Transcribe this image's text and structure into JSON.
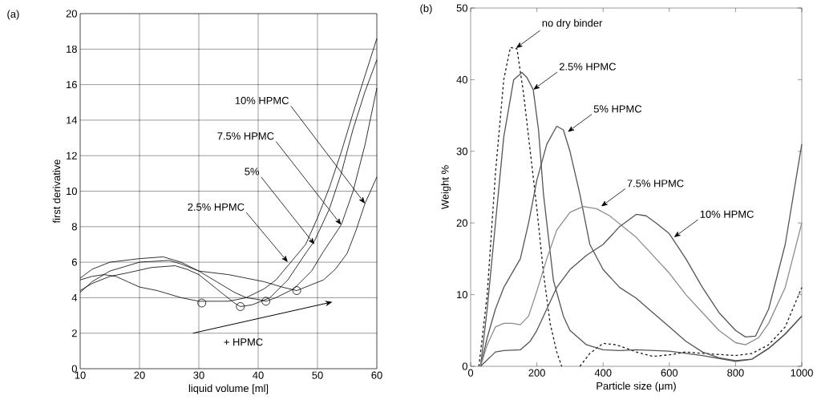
{
  "chart_data": [
    {
      "type": "line",
      "title": "(a)",
      "xlabel": "liquid volume [ml]",
      "ylabel": "first derivative",
      "xlim": [
        10,
        60
      ],
      "ylim": [
        0,
        20
      ],
      "xticks": [
        10,
        20,
        30,
        40,
        50,
        60
      ],
      "yticks": [
        0,
        2,
        4,
        6,
        8,
        10,
        12,
        14,
        16,
        18,
        20
      ],
      "grid": true,
      "series": [
        {
          "color": "#000000",
          "x": [
            10,
            12,
            14,
            16,
            18,
            20,
            23,
            27,
            30,
            33,
            35,
            38,
            41,
            43,
            45.5,
            48,
            50,
            52,
            54,
            56,
            58,
            60
          ],
          "values": [
            5.0,
            5.2,
            5.3,
            5.2,
            4.9,
            4.6,
            4.4,
            4.0,
            3.8,
            3.8,
            3.8,
            4.0,
            4.5,
            5.0,
            6.0,
            7.0,
            8.5,
            10.2,
            12.2,
            14.4,
            16.5,
            18.6
          ]
        },
        {
          "color": "#000000",
          "x": [
            10,
            12,
            15,
            18,
            22,
            26,
            28,
            30,
            33,
            36,
            37,
            39,
            42,
            45,
            48,
            49.5,
            52,
            54,
            56,
            58,
            60
          ],
          "values": [
            4.4,
            4.8,
            5.2,
            5.4,
            5.7,
            5.8,
            5.6,
            5.3,
            4.5,
            3.7,
            3.5,
            3.6,
            4.0,
            5.0,
            6.5,
            7.2,
            9.0,
            11.0,
            13.5,
            15.6,
            17.4
          ]
        },
        {
          "color": "#000000",
          "x": [
            10,
            12,
            15,
            20,
            24,
            27,
            30,
            33,
            36,
            38,
            40,
            41.3,
            43,
            46,
            49,
            51,
            54,
            56,
            58,
            60
          ],
          "values": [
            5.1,
            5.6,
            6.0,
            6.2,
            6.3,
            6.0,
            5.5,
            4.9,
            4.3,
            4.0,
            3.9,
            3.8,
            4.0,
            4.5,
            5.5,
            6.6,
            8.1,
            10.0,
            12.6,
            15.8
          ]
        },
        {
          "color": "#000000",
          "x": [
            10,
            12,
            15,
            20,
            25,
            27,
            30,
            35,
            38,
            41,
            44,
            46.5,
            48,
            51,
            53,
            55,
            56.5,
            58,
            60
          ],
          "values": [
            4.3,
            4.9,
            5.5,
            6.0,
            6.1,
            5.9,
            5.5,
            5.3,
            5.1,
            4.9,
            4.6,
            4.4,
            4.6,
            5.0,
            5.6,
            6.5,
            7.8,
            9.3,
            10.8
          ]
        },
        {
          "type": "scatter",
          "marker": "circle",
          "color": "#000000",
          "x": [
            30.5,
            37,
            41.3,
            46.5
          ],
          "values": [
            3.7,
            3.5,
            3.8,
            4.4
          ]
        }
      ],
      "annotations": [
        {
          "text": "2.5% HPMC",
          "x": 45,
          "y": 6.0
        },
        {
          "text": "5%",
          "x": 49.5,
          "y": 7.0
        },
        {
          "text": "7.5% HPMC",
          "x": 54,
          "y": 8.1
        },
        {
          "text": "10% HPMC",
          "x": 58,
          "y": 9.3
        },
        "+ HPMC"
      ]
    },
    {
      "type": "line",
      "title": "(b)",
      "xlabel": "Particle size (μm)",
      "ylabel": "Weight %",
      "xlim": [
        0,
        1000
      ],
      "ylim": [
        0,
        50
      ],
      "xticks": [
        0,
        200,
        400,
        600,
        800,
        1000
      ],
      "yticks": [
        0,
        10,
        20,
        30,
        40,
        50
      ],
      "series": [
        {
          "color": "#1a1a1a",
          "line_style": "dashed",
          "x": [
            25,
            50,
            75,
            100,
            120,
            140,
            160,
            180,
            200,
            220,
            240,
            260,
            275,
            300,
            330,
            360,
            400,
            440,
            500,
            550,
            600,
            650,
            700,
            800,
            850,
            900,
            950,
            1000
          ],
          "values": [
            0,
            10,
            27,
            40,
            44.5,
            44.3,
            38,
            30,
            22,
            13,
            6,
            2,
            0,
            null,
            0,
            1.8,
            3.2,
            3.0,
            2.0,
            1.4,
            1.6,
            2.0,
            1.8,
            1.5,
            1.8,
            3.0,
            5.5,
            11
          ]
        },
        {
          "color": "#555555",
          "x": [
            30,
            50,
            75,
            100,
            130,
            155,
            170,
            189,
            205,
            220,
            250,
            280,
            300,
            350,
            400,
            450,
            500,
            600,
            700,
            800,
            850,
            900,
            950,
            1000
          ],
          "values": [
            0,
            8,
            20,
            32,
            40,
            41,
            40.3,
            38.6,
            33,
            24,
            12,
            7,
            5,
            3,
            2.3,
            2.2,
            2.3,
            2.1,
            1.5,
            0.7,
            1.0,
            2.5,
            4.5,
            7
          ]
        },
        {
          "color": "#555555",
          "x": [
            30,
            50,
            75,
            100,
            150,
            175,
            200,
            230,
            260,
            280,
            300,
            330,
            360,
            400,
            450,
            500,
            550,
            600,
            650,
            700,
            750,
            800,
            850,
            900,
            950,
            1000
          ],
          "values": [
            0,
            4,
            8,
            11,
            15,
            20,
            26,
            31,
            33.5,
            33,
            30,
            24,
            17,
            13.5,
            11,
            9.5,
            7.5,
            5.5,
            3.5,
            2,
            1.2,
            0.8,
            1.0,
            2.5,
            4.5,
            7
          ]
        },
        {
          "color": "#8c8c8c",
          "x": [
            30,
            50,
            75,
            100,
            125,
            150,
            175,
            200,
            230,
            260,
            300,
            340,
            380,
            420,
            460,
            500,
            550,
            600,
            650,
            700,
            750,
            800,
            830,
            870,
            900,
            950,
            1000
          ],
          "values": [
            0,
            3,
            5.5,
            6,
            6,
            5.8,
            7,
            10.5,
            15,
            19,
            21.5,
            22.3,
            22,
            21,
            19.5,
            18,
            15.5,
            13,
            10,
            7.5,
            5,
            3.3,
            3,
            4,
            6,
            11,
            20
          ]
        },
        {
          "color": "#555555",
          "x": [
            30,
            75,
            100,
            150,
            180,
            200,
            230,
            260,
            300,
            350,
            400,
            450,
            500,
            530,
            560,
            600,
            650,
            700,
            750,
            800,
            830,
            860,
            900,
            950,
            1000
          ],
          "values": [
            0,
            2,
            2.2,
            2.3,
            3.5,
            5,
            8,
            11,
            13.5,
            15.5,
            17,
            19.5,
            21.2,
            21,
            20,
            18.5,
            15,
            11,
            7.5,
            5,
            4.1,
            4.2,
            8,
            17,
            31
          ]
        }
      ],
      "annotations": [
        {
          "text": "no dry binder",
          "x": 137,
          "y": 44.4
        },
        {
          "text": "2.5% HPMC",
          "x": 189,
          "y": 38.6
        },
        {
          "text": "5% HPMC",
          "x": 293,
          "y": 32.7
        },
        {
          "text": "7.5% HPMC",
          "x": 394,
          "y": 22.3
        },
        {
          "text": "10% HPMC",
          "x": 614,
          "y": 18.0
        }
      ]
    }
  ]
}
